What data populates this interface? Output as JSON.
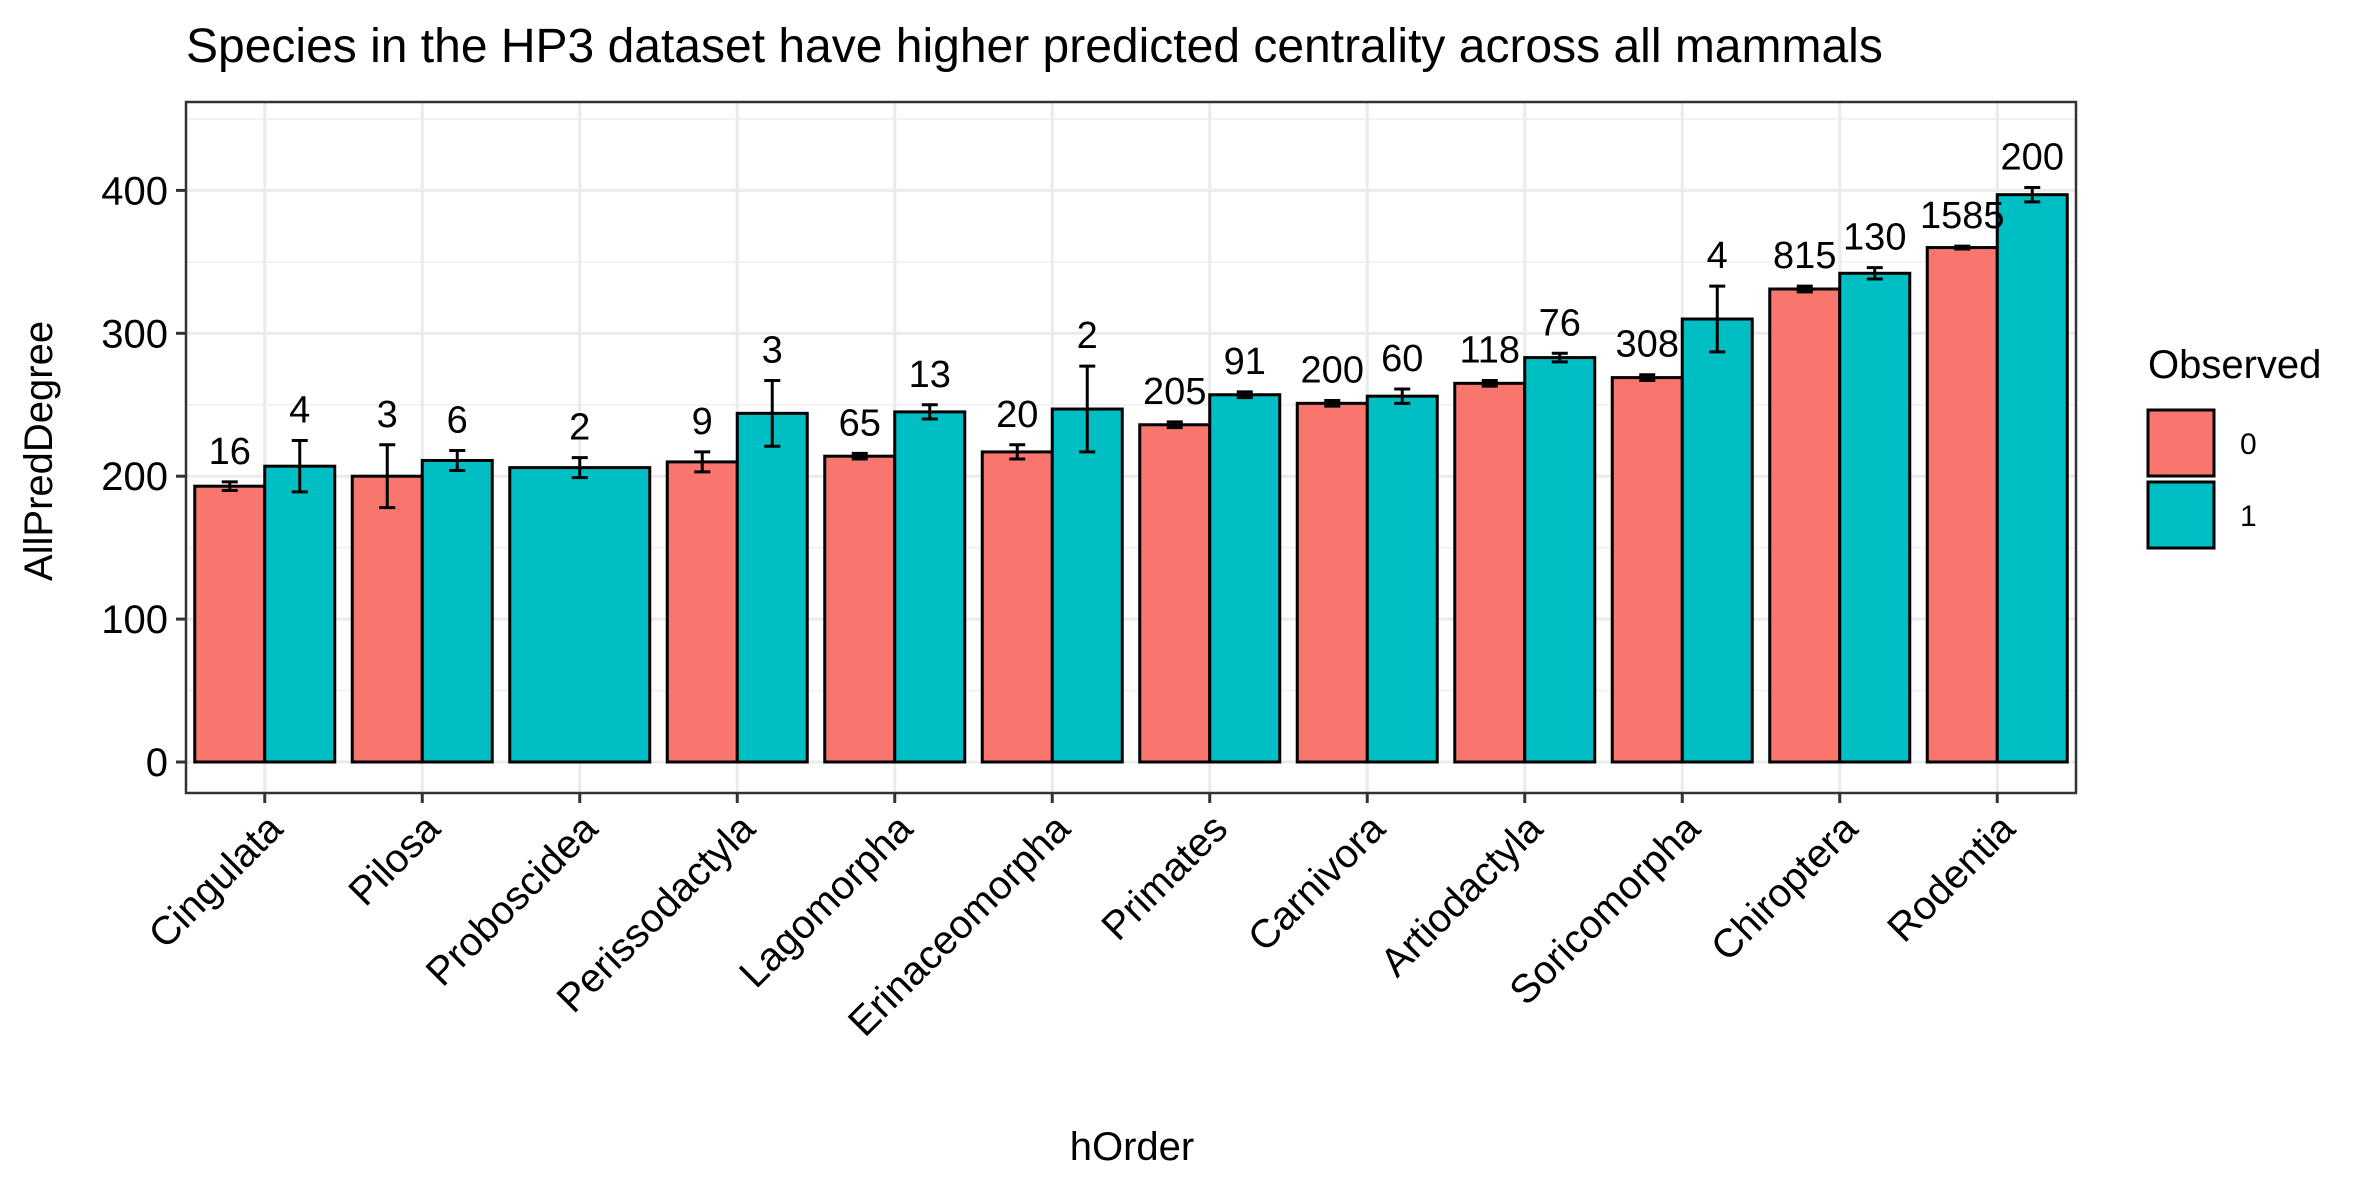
{
  "chart_data": {
    "type": "bar",
    "title": "Species in the HP3 dataset have higher predicted centrality across all mammals",
    "xlabel": "hOrder",
    "ylabel": "AllPredDegree",
    "ylim": [
      0,
      460
    ],
    "yticks": [
      0,
      100,
      200,
      300,
      400
    ],
    "grid": true,
    "categories": [
      "Cingulata",
      "Pilosa",
      "Proboscidea",
      "Perissodactyla",
      "Lagomorpha",
      "Erinaceomorpha",
      "Primates",
      "Carnivora",
      "Artiodactyla",
      "Soricomorpha",
      "Chiroptera",
      "Rodentia"
    ],
    "legend": {
      "title": "Observed",
      "position": "right"
    },
    "series": [
      {
        "name": "0",
        "color": "#F8766D",
        "values": [
          193,
          200,
          null,
          210,
          214,
          217,
          236,
          251,
          265,
          269,
          331,
          360
        ],
        "error": [
          3,
          22,
          null,
          7,
          2,
          5,
          2,
          2,
          2,
          2,
          2,
          1
        ],
        "labels": [
          "16",
          "3",
          "",
          "9",
          "65",
          "20",
          "205",
          "200",
          "118",
          "308",
          "815",
          "1585"
        ]
      },
      {
        "name": "1",
        "color": "#00BFC4",
        "values": [
          207,
          211,
          206,
          244,
          245,
          247,
          257,
          256,
          283,
          310,
          342,
          397
        ],
        "error": [
          18,
          7,
          7,
          23,
          5,
          30,
          2,
          5,
          3,
          23,
          4,
          5
        ],
        "labels": [
          "4",
          "6",
          "2",
          "3",
          "13",
          "2",
          "91",
          "60",
          "76",
          "4",
          "130",
          "200"
        ]
      }
    ]
  }
}
